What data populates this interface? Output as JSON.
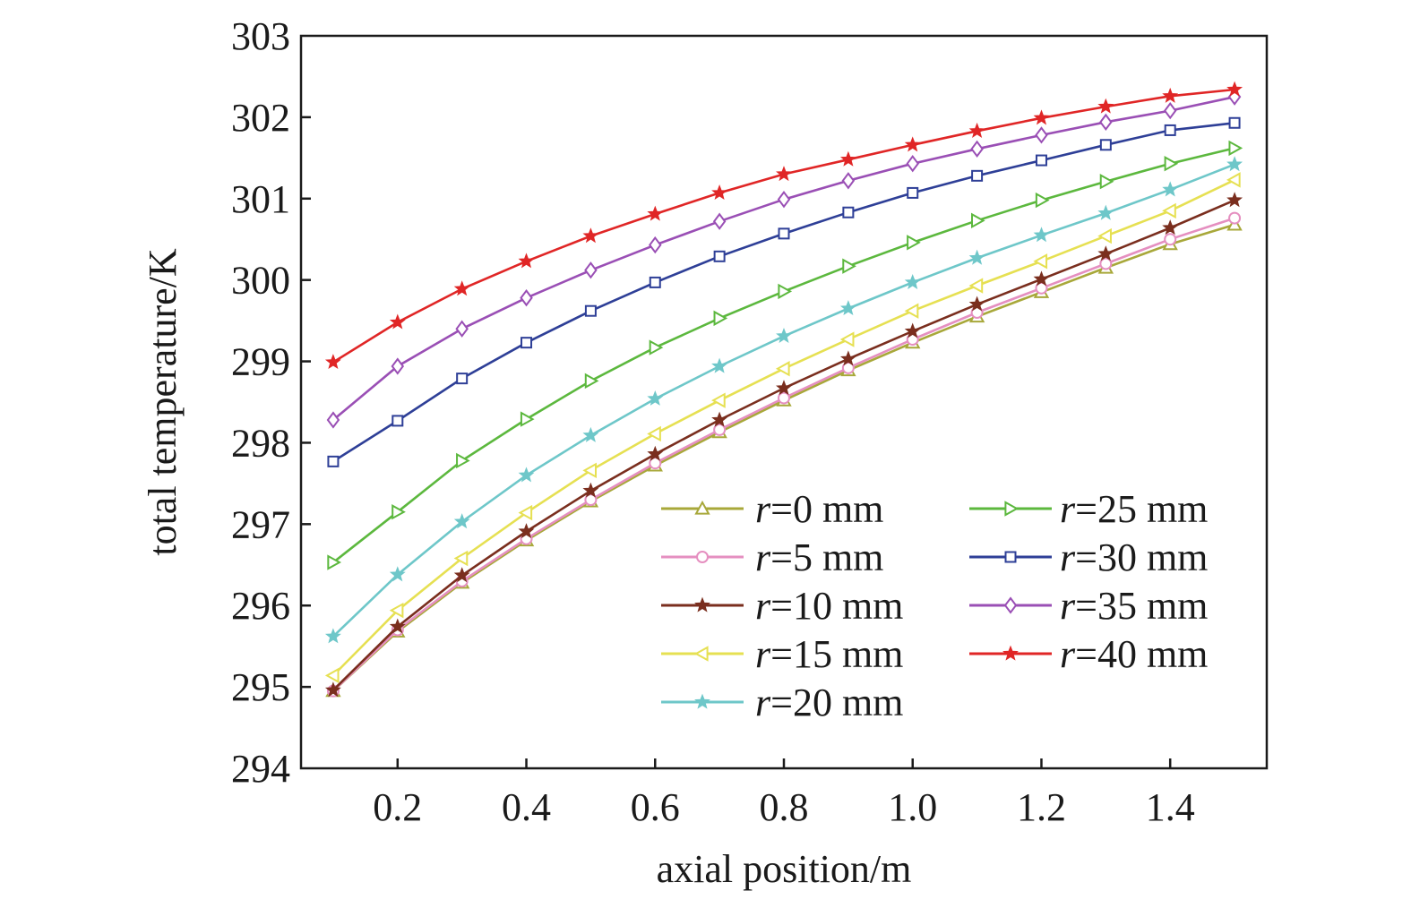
{
  "chart_data": {
    "type": "line",
    "title": "",
    "xlabel": "axial position/m",
    "ylabel": "total temperature/K",
    "xlim": [
      0.05,
      1.55
    ],
    "ylim": [
      294,
      303
    ],
    "xticks": [
      "0.2",
      "0.4",
      "0.6",
      "0.8",
      "1.0",
      "1.2",
      "1.4"
    ],
    "yticks": [
      "294",
      "295",
      "296",
      "297",
      "298",
      "299",
      "300",
      "301",
      "302",
      "303"
    ],
    "grid": false,
    "legend_position": "bottom-right",
    "x": [
      0.1,
      0.2,
      0.3,
      0.4,
      0.5,
      0.6,
      0.7,
      0.8,
      0.9,
      1.0,
      1.1,
      1.2,
      1.3,
      1.4,
      1.5
    ],
    "series": [
      {
        "name": "r=0 mm",
        "name_var": "r",
        "name_rest": "=0 mm",
        "color": "#a8a83a",
        "marker": "triangle-up",
        "values": [
          294.95,
          295.68,
          296.28,
          296.8,
          297.28,
          297.72,
          298.13,
          298.52,
          298.89,
          299.23,
          299.55,
          299.85,
          300.15,
          300.44,
          300.68
        ]
      },
      {
        "name": "r=5 mm",
        "name_var": "r",
        "name_rest": "=5 mm",
        "color": "#e58fc0",
        "marker": "circle",
        "values": [
          294.95,
          295.7,
          296.3,
          296.82,
          297.3,
          297.75,
          298.16,
          298.55,
          298.92,
          299.27,
          299.6,
          299.9,
          300.2,
          300.5,
          300.76
        ]
      },
      {
        "name": "r=10 mm",
        "name_var": "r",
        "name_rest": "=10 mm",
        "color": "#7a2e1e",
        "marker": "star",
        "values": [
          294.96,
          295.74,
          296.37,
          296.91,
          297.41,
          297.86,
          298.28,
          298.67,
          299.03,
          299.37,
          299.7,
          300.01,
          300.32,
          300.64,
          300.98
        ]
      },
      {
        "name": "r=15 mm",
        "name_var": "r",
        "name_rest": "=15 mm",
        "color": "#e6e052",
        "marker": "triangle-left",
        "values": [
          295.14,
          295.94,
          296.58,
          297.14,
          297.66,
          298.11,
          298.52,
          298.91,
          299.27,
          299.62,
          299.93,
          300.23,
          300.54,
          300.85,
          301.23
        ]
      },
      {
        "name": "r=20 mm",
        "name_var": "r",
        "name_rest": "=20 mm",
        "color": "#6ec7c9",
        "marker": "star",
        "values": [
          295.62,
          296.38,
          297.03,
          297.6,
          298.09,
          298.54,
          298.94,
          299.31,
          299.65,
          299.97,
          300.27,
          300.55,
          300.82,
          301.11,
          301.42
        ]
      },
      {
        "name": "r=25 mm",
        "name_var": "r",
        "name_rest": "=25 mm",
        "color": "#5cb83e",
        "marker": "triangle-right",
        "values": [
          296.53,
          297.15,
          297.78,
          298.29,
          298.76,
          299.17,
          299.53,
          299.86,
          300.17,
          300.46,
          300.73,
          300.98,
          301.21,
          301.43,
          301.62
        ]
      },
      {
        "name": "r=30 mm",
        "name_var": "r",
        "name_rest": "=30 mm",
        "color": "#2e3f97",
        "marker": "square",
        "values": [
          297.77,
          298.27,
          298.79,
          299.23,
          299.62,
          299.97,
          300.29,
          300.57,
          300.83,
          301.07,
          301.28,
          301.47,
          301.66,
          301.84,
          301.93
        ]
      },
      {
        "name": "r=35 mm",
        "name_var": "r",
        "name_rest": "=35 mm",
        "color": "#9a4fb5",
        "marker": "diamond",
        "values": [
          298.28,
          298.94,
          299.4,
          299.78,
          300.12,
          300.43,
          300.72,
          300.99,
          301.22,
          301.43,
          301.61,
          301.78,
          301.94,
          302.08,
          302.25
        ]
      },
      {
        "name": "r=40 mm",
        "name_var": "r",
        "name_rest": "=40 mm",
        "color": "#e02626",
        "marker": "star",
        "values": [
          298.99,
          299.48,
          299.89,
          300.23,
          300.54,
          300.81,
          301.07,
          301.3,
          301.48,
          301.66,
          301.83,
          301.99,
          302.13,
          302.26,
          302.34
        ]
      }
    ]
  }
}
